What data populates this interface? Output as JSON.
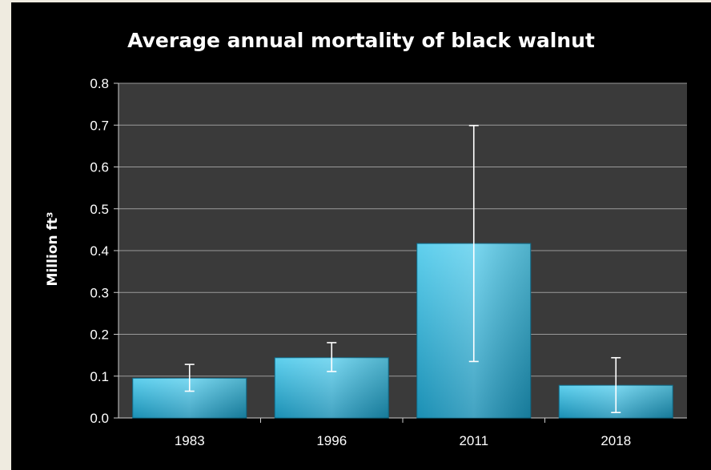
{
  "chart_data": {
    "type": "bar",
    "title": "Average annual mortality of black walnut",
    "xlabel": "",
    "ylabel": "Million ft³",
    "categories": [
      "1983",
      "1996",
      "2011",
      "2018"
    ],
    "values": [
      0.095,
      0.144,
      0.417,
      0.078
    ],
    "error_low": [
      0.064,
      0.111,
      0.135,
      0.013
    ],
    "error_high": [
      0.128,
      0.18,
      0.699,
      0.144
    ],
    "ylim": [
      0,
      0.8
    ],
    "yticks": [
      "0.0",
      "0.1",
      "0.2",
      "0.3",
      "0.4",
      "0.5",
      "0.6",
      "0.7",
      "0.8"
    ],
    "grid": true,
    "legend": "none",
    "colors": {
      "bar_top": "#5fd0ee",
      "bar_bottom": "#1a8fb4",
      "plot_bg": "#3a3a3a",
      "grid": "#9a9a9a",
      "error_bar": "#ffffff",
      "text": "#ffffff",
      "panel_bg": "#000000",
      "page_bg": "#efebe0"
    }
  }
}
